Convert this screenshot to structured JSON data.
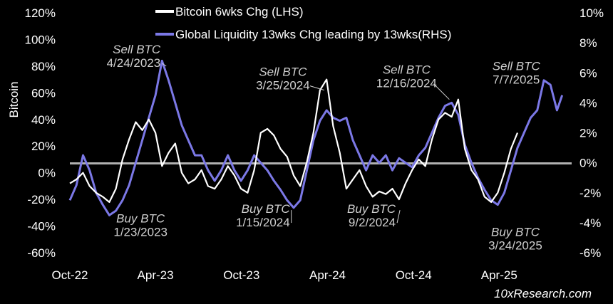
{
  "chart_data": {
    "type": "line",
    "ylabel": "Bitcoin",
    "watermark": "10xResearch.com",
    "legend": {
      "placement": "top"
    },
    "x_range": [
      "2022-10-01",
      "2025-08-15"
    ],
    "x_ticks": [
      {
        "date": "2022-10-01",
        "label": "Oct-22"
      },
      {
        "date": "2023-04-01",
        "label": "Apr-23"
      },
      {
        "date": "2023-10-01",
        "label": "Oct-23"
      },
      {
        "date": "2024-04-01",
        "label": "Apr-24"
      },
      {
        "date": "2024-10-01",
        "label": "Oct-24"
      },
      {
        "date": "2025-04-01",
        "label": "Apr-25"
      }
    ],
    "y_left": {
      "range": [
        -60,
        120
      ],
      "ticks": [
        -60,
        -40,
        -20,
        0,
        20,
        40,
        60,
        80,
        100,
        120
      ],
      "tick_labels": [
        "-60%",
        "-40%",
        "-20%",
        "0%",
        "20%",
        "40%",
        "60%",
        "80%",
        "100%",
        "120%"
      ]
    },
    "y_right": {
      "range": [
        -6,
        10
      ],
      "ticks": [
        -6,
        -4,
        -2,
        0,
        2,
        4,
        6,
        8,
        10
      ],
      "tick_labels": [
        "-6%",
        "-4%",
        "-2%",
        "0%",
        "2%",
        "4%",
        "6%",
        "8%",
        "10%"
      ]
    },
    "zero_line_left": 7,
    "colors": {
      "background": "#000000",
      "bitcoin": "#ffffff",
      "liquidity": "#7b78e6",
      "zero_line": "#b0b0b0",
      "text": "#ffffff",
      "annotation": "#cfcfcf"
    },
    "series": [
      {
        "name": "Bitcoin 6wks Chg (LHS)",
        "axis": "left",
        "x": [
          "2022-10-01",
          "2022-10-15",
          "2022-10-29",
          "2022-11-12",
          "2022-11-26",
          "2022-12-10",
          "2022-12-24",
          "2023-01-07",
          "2023-01-21",
          "2023-02-04",
          "2023-02-18",
          "2023-03-04",
          "2023-03-18",
          "2023-04-01",
          "2023-04-15",
          "2023-04-29",
          "2023-05-13",
          "2023-05-27",
          "2023-06-10",
          "2023-06-24",
          "2023-07-08",
          "2023-07-22",
          "2023-08-05",
          "2023-08-19",
          "2023-09-02",
          "2023-09-16",
          "2023-09-30",
          "2023-10-14",
          "2023-10-28",
          "2023-11-11",
          "2023-11-25",
          "2023-12-09",
          "2023-12-23",
          "2024-01-06",
          "2024-01-20",
          "2024-02-03",
          "2024-02-17",
          "2024-03-02",
          "2024-03-16",
          "2024-03-30",
          "2024-04-13",
          "2024-04-27",
          "2024-05-11",
          "2024-05-25",
          "2024-06-08",
          "2024-06-22",
          "2024-07-06",
          "2024-07-20",
          "2024-08-03",
          "2024-08-17",
          "2024-08-31",
          "2024-09-14",
          "2024-09-28",
          "2024-10-12",
          "2024-10-26",
          "2024-11-09",
          "2024-11-23",
          "2024-12-07",
          "2024-12-21",
          "2025-01-04",
          "2025-01-18",
          "2025-02-01",
          "2025-02-15",
          "2025-03-01",
          "2025-03-15",
          "2025-03-29",
          "2025-04-12",
          "2025-04-26",
          "2025-05-10"
        ],
        "values": [
          -8,
          -5,
          0,
          -10,
          -15,
          -18,
          -22,
          -12,
          10,
          25,
          38,
          32,
          40,
          30,
          5,
          15,
          22,
          0,
          -8,
          -5,
          2,
          -10,
          -12,
          -5,
          5,
          -2,
          -12,
          -15,
          2,
          30,
          33,
          28,
          18,
          12,
          -2,
          -10,
          8,
          30,
          62,
          70,
          35,
          15,
          -12,
          -5,
          2,
          -10,
          -18,
          -14,
          -16,
          -12,
          -20,
          -8,
          2,
          10,
          5,
          25,
          40,
          45,
          42,
          55,
          18,
          2,
          -5,
          -18,
          -22,
          -15,
          0,
          18,
          30
        ]
      },
      {
        "name": "Global Liquidity 13wks Chg leading by 13wks(RHS)",
        "axis": "right",
        "x": [
          "2022-10-01",
          "2022-10-15",
          "2022-10-29",
          "2022-11-12",
          "2022-11-26",
          "2022-12-10",
          "2022-12-24",
          "2023-01-07",
          "2023-01-21",
          "2023-02-04",
          "2023-02-18",
          "2023-03-04",
          "2023-03-18",
          "2023-04-01",
          "2023-04-15",
          "2023-04-29",
          "2023-05-13",
          "2023-05-27",
          "2023-06-10",
          "2023-06-24",
          "2023-07-08",
          "2023-07-22",
          "2023-08-05",
          "2023-08-19",
          "2023-09-02",
          "2023-09-16",
          "2023-09-30",
          "2023-10-14",
          "2023-10-28",
          "2023-11-11",
          "2023-11-25",
          "2023-12-09",
          "2023-12-23",
          "2024-01-06",
          "2024-01-20",
          "2024-02-03",
          "2024-02-17",
          "2024-03-02",
          "2024-03-16",
          "2024-03-30",
          "2024-04-13",
          "2024-04-27",
          "2024-05-11",
          "2024-05-25",
          "2024-06-08",
          "2024-06-22",
          "2024-07-06",
          "2024-07-20",
          "2024-08-03",
          "2024-08-17",
          "2024-08-31",
          "2024-09-14",
          "2024-09-28",
          "2024-10-12",
          "2024-10-26",
          "2024-11-09",
          "2024-11-23",
          "2024-12-07",
          "2024-12-21",
          "2025-01-04",
          "2025-01-18",
          "2025-02-01",
          "2025-02-15",
          "2025-03-01",
          "2025-03-15",
          "2025-03-29",
          "2025-04-12",
          "2025-04-26",
          "2025-05-10",
          "2025-05-24",
          "2025-06-07",
          "2025-06-21",
          "2025-07-05",
          "2025-07-19",
          "2025-08-02",
          "2025-08-13"
        ],
        "values": [
          -2.5,
          -1.5,
          0.5,
          -0.5,
          -2.0,
          -2.8,
          -3.5,
          -3.2,
          -2.5,
          -1.5,
          0.0,
          1.5,
          3.0,
          4.5,
          6.8,
          5.5,
          4.0,
          2.5,
          1.5,
          0.5,
          0.5,
          -0.5,
          -1.2,
          -0.5,
          0.5,
          -0.5,
          -1.2,
          -0.5,
          0.5,
          0.0,
          -0.5,
          -1.2,
          -1.8,
          -2.5,
          -3.0,
          -2.5,
          -0.5,
          1.5,
          2.8,
          3.5,
          3.0,
          2.8,
          3.0,
          1.5,
          0.5,
          -0.5,
          0.5,
          0.0,
          0.5,
          -0.5,
          0.3,
          0.0,
          -0.3,
          0.5,
          1.0,
          2.0,
          3.0,
          3.8,
          4.0,
          3.2,
          1.2,
          0.0,
          -1.0,
          -1.8,
          -2.5,
          -2.8,
          -2.0,
          -0.5,
          1.0,
          2.0,
          3.0,
          3.5,
          5.5,
          5.2,
          3.5,
          4.5
        ]
      }
    ],
    "annotations": [
      {
        "lines": [
          "Sell BTC",
          "4/24/2023"
        ],
        "x": "2023-04-24",
        "y_left": 80,
        "anchor": "end",
        "dx": -8,
        "dy": -18,
        "leader": true
      },
      {
        "lines": [
          "Sell BTC",
          "3/25/2024"
        ],
        "x": "2024-03-25",
        "y_left": 62,
        "anchor": "middle",
        "dx": -58,
        "dy": -20,
        "leader": true
      },
      {
        "lines": [
          "Sell BTC",
          "12/16/2024"
        ],
        "x": "2024-12-16",
        "y_left": 55,
        "anchor": "middle",
        "dx": -60,
        "dy": -36,
        "leader": true
      },
      {
        "lines": [
          "Sell BTC",
          "7/7/2025"
        ],
        "x": "2025-07-07",
        "y_left": 62,
        "anchor": "middle",
        "dx": -40,
        "dy": -28,
        "leader": false
      },
      {
        "lines": [
          "Buy BTC",
          "1/23/2023"
        ],
        "x": "2023-01-23",
        "y_left": -40,
        "anchor": "middle",
        "dx": 24,
        "dy": -5,
        "leader": false
      },
      {
        "lines": [
          "Buy BTC",
          "1/15/2024"
        ],
        "x": "2024-01-15",
        "y_left": -28,
        "anchor": "end",
        "dx": -2,
        "dy": 4,
        "leader": true
      },
      {
        "lines": [
          "Buy BTC",
          "9/2/2024"
        ],
        "x": "2024-09-02",
        "y_left": -28,
        "anchor": "end",
        "dx": -6,
        "dy": 4,
        "leader": true
      },
      {
        "lines": [
          "Buy BTC",
          "3/24/2025"
        ],
        "x": "2025-03-24",
        "y_left": -25,
        "anchor": "middle",
        "dx": 28,
        "dy": 42,
        "leader": false
      }
    ]
  }
}
